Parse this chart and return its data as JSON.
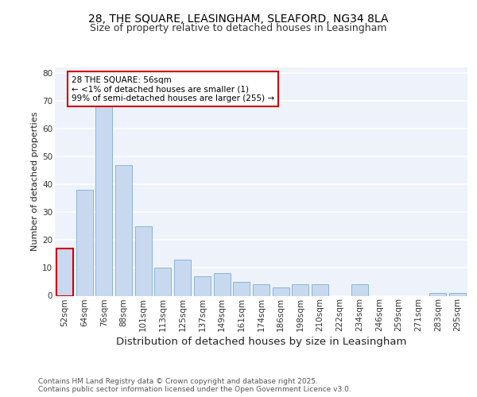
{
  "title1": "28, THE SQUARE, LEASINGHAM, SLEAFORD, NG34 8LA",
  "title2": "Size of property relative to detached houses in Leasingham",
  "xlabel": "Distribution of detached houses by size in Leasingham",
  "ylabel": "Number of detached properties",
  "categories": [
    "52sqm",
    "64sqm",
    "76sqm",
    "88sqm",
    "101sqm",
    "113sqm",
    "125sqm",
    "137sqm",
    "149sqm",
    "161sqm",
    "174sqm",
    "186sqm",
    "198sqm",
    "210sqm",
    "222sqm",
    "234sqm",
    "246sqm",
    "259sqm",
    "271sqm",
    "283sqm",
    "295sqm"
  ],
  "values": [
    17,
    38,
    68,
    47,
    25,
    10,
    13,
    7,
    8,
    5,
    4,
    3,
    4,
    4,
    0,
    4,
    0,
    0,
    0,
    1,
    1
  ],
  "bar_color": "#c8d9ef",
  "bar_edge_color": "#8ab4d8",
  "highlight_edge_color": "#cc0000",
  "annotation_text": "28 THE SQUARE: 56sqm\n← <1% of detached houses are smaller (1)\n99% of semi-detached houses are larger (255) →",
  "annotation_box_color": "#ffffff",
  "annotation_box_edge": "#cc0000",
  "ylim": [
    0,
    82
  ],
  "yticks": [
    0,
    10,
    20,
    30,
    40,
    50,
    60,
    70,
    80
  ],
  "footer": "Contains HM Land Registry data © Crown copyright and database right 2025.\nContains public sector information licensed under the Open Government Licence v3.0.",
  "bg_color": "#ffffff",
  "plot_bg_color": "#eef2fb",
  "grid_color": "#ffffff",
  "title1_fontsize": 10,
  "title2_fontsize": 9,
  "xlabel_fontsize": 9.5,
  "ylabel_fontsize": 8,
  "tick_fontsize": 7.5,
  "annotation_fontsize": 7.5,
  "footer_fontsize": 6.5
}
